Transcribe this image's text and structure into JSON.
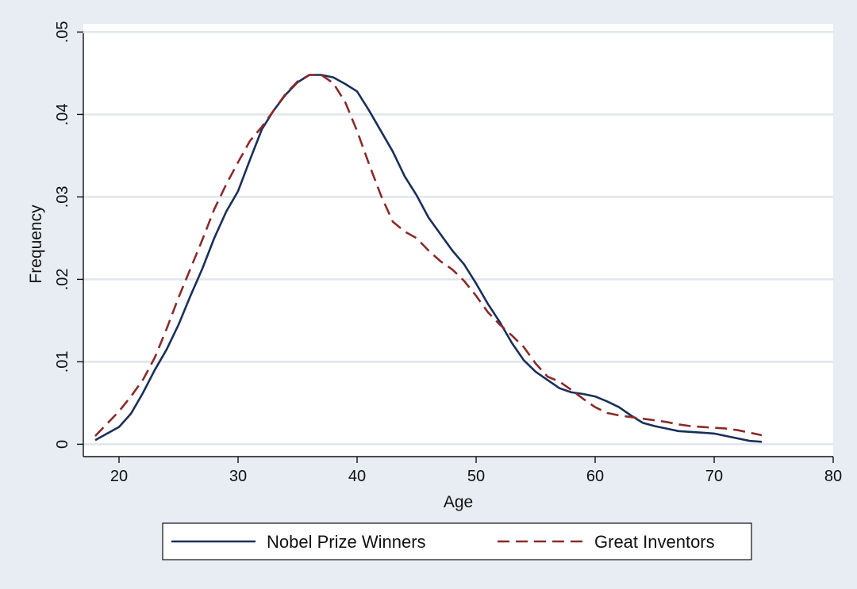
{
  "chart_data": {
    "type": "line",
    "xlabel": "Age",
    "ylabel": "Frequency",
    "xlim": [
      17,
      80
    ],
    "ylim": [
      -0.0015,
      0.051
    ],
    "x_ticks": [
      20,
      30,
      40,
      50,
      60,
      70,
      80
    ],
    "x_tick_labels": [
      "20",
      "30",
      "40",
      "50",
      "60",
      "70",
      "80"
    ],
    "y_ticks": [
      0,
      0.01,
      0.02,
      0.03,
      0.04,
      0.05
    ],
    "y_tick_labels": [
      "0",
      ".01",
      ".02",
      ".03",
      ".04",
      ".05"
    ],
    "grid": "horizontal",
    "legend_position": "bottom",
    "background_color": "#e8ecf3",
    "plot_background_color": "#ffffff",
    "gridline_color": "#dfe6ee",
    "series": [
      {
        "name": "Nobel Prize Winners",
        "color": "#1a2f5a",
        "style": "solid",
        "points": [
          [
            18,
            0.0005
          ],
          [
            19,
            0.0013
          ],
          [
            20,
            0.0021
          ],
          [
            21,
            0.0037
          ],
          [
            22,
            0.0062
          ],
          [
            23,
            0.009
          ],
          [
            24,
            0.0115
          ],
          [
            25,
            0.0145
          ],
          [
            26,
            0.018
          ],
          [
            27,
            0.0213
          ],
          [
            28,
            0.025
          ],
          [
            29,
            0.0282
          ],
          [
            30,
            0.0307
          ],
          [
            31,
            0.0345
          ],
          [
            32,
            0.0382
          ],
          [
            33,
            0.0405
          ],
          [
            34,
            0.0424
          ],
          [
            35,
            0.0439
          ],
          [
            36,
            0.0448
          ],
          [
            37,
            0.0448
          ],
          [
            38,
            0.0445
          ],
          [
            39,
            0.0437
          ],
          [
            40,
            0.0428
          ],
          [
            41,
            0.0405
          ],
          [
            42,
            0.038
          ],
          [
            43,
            0.0355
          ],
          [
            44,
            0.0325
          ],
          [
            45,
            0.0302
          ],
          [
            46,
            0.0275
          ],
          [
            47,
            0.0255
          ],
          [
            48,
            0.0235
          ],
          [
            49,
            0.0218
          ],
          [
            50,
            0.0195
          ],
          [
            51,
            0.017
          ],
          [
            52,
            0.0148
          ],
          [
            53,
            0.0123
          ],
          [
            54,
            0.0102
          ],
          [
            55,
            0.0088
          ],
          [
            56,
            0.0078
          ],
          [
            57,
            0.0068
          ],
          [
            58,
            0.0063
          ],
          [
            59,
            0.0061
          ],
          [
            60,
            0.0058
          ],
          [
            61,
            0.0052
          ],
          [
            62,
            0.0045
          ],
          [
            63,
            0.0035
          ],
          [
            64,
            0.0026
          ],
          [
            65,
            0.0022
          ],
          [
            66,
            0.0019
          ],
          [
            67,
            0.0016
          ],
          [
            68,
            0.0015
          ],
          [
            69,
            0.0014
          ],
          [
            70,
            0.0013
          ],
          [
            71,
            0.001
          ],
          [
            72,
            0.0007
          ],
          [
            73,
            0.0004
          ],
          [
            74,
            0.0003
          ]
        ]
      },
      {
        "name": "Great Inventors",
        "color": "#8b2a2a",
        "style": "dashed",
        "points": [
          [
            18,
            0.001
          ],
          [
            19,
            0.0025
          ],
          [
            20,
            0.004
          ],
          [
            21,
            0.0058
          ],
          [
            22,
            0.0078
          ],
          [
            23,
            0.0105
          ],
          [
            24,
            0.014
          ],
          [
            25,
            0.0178
          ],
          [
            26,
            0.0213
          ],
          [
            27,
            0.0248
          ],
          [
            28,
            0.0285
          ],
          [
            29,
            0.0315
          ],
          [
            30,
            0.0342
          ],
          [
            31,
            0.0368
          ],
          [
            32,
            0.0385
          ],
          [
            33,
            0.0405
          ],
          [
            34,
            0.0425
          ],
          [
            35,
            0.044
          ],
          [
            36,
            0.0448
          ],
          [
            37,
            0.0448
          ],
          [
            38,
            0.0438
          ],
          [
            39,
            0.0415
          ],
          [
            40,
            0.038
          ],
          [
            41,
            0.034
          ],
          [
            42,
            0.0302
          ],
          [
            43,
            0.027
          ],
          [
            44,
            0.0258
          ],
          [
            45,
            0.025
          ],
          [
            46,
            0.0235
          ],
          [
            47,
            0.0222
          ],
          [
            48,
            0.0212
          ],
          [
            49,
            0.0198
          ],
          [
            50,
            0.018
          ],
          [
            51,
            0.016
          ],
          [
            52,
            0.0145
          ],
          [
            53,
            0.0132
          ],
          [
            54,
            0.0118
          ],
          [
            55,
            0.0098
          ],
          [
            56,
            0.0082
          ],
          [
            57,
            0.0076
          ],
          [
            58,
            0.0066
          ],
          [
            59,
            0.0055
          ],
          [
            60,
            0.0045
          ],
          [
            61,
            0.0038
          ],
          [
            62,
            0.0035
          ],
          [
            63,
            0.0033
          ],
          [
            64,
            0.0031
          ],
          [
            65,
            0.0029
          ],
          [
            66,
            0.0027
          ],
          [
            67,
            0.0024
          ],
          [
            68,
            0.0022
          ],
          [
            69,
            0.0021
          ],
          [
            70,
            0.002
          ],
          [
            71,
            0.0019
          ],
          [
            72,
            0.0017
          ],
          [
            73,
            0.0014
          ],
          [
            74,
            0.0011
          ]
        ]
      }
    ]
  }
}
